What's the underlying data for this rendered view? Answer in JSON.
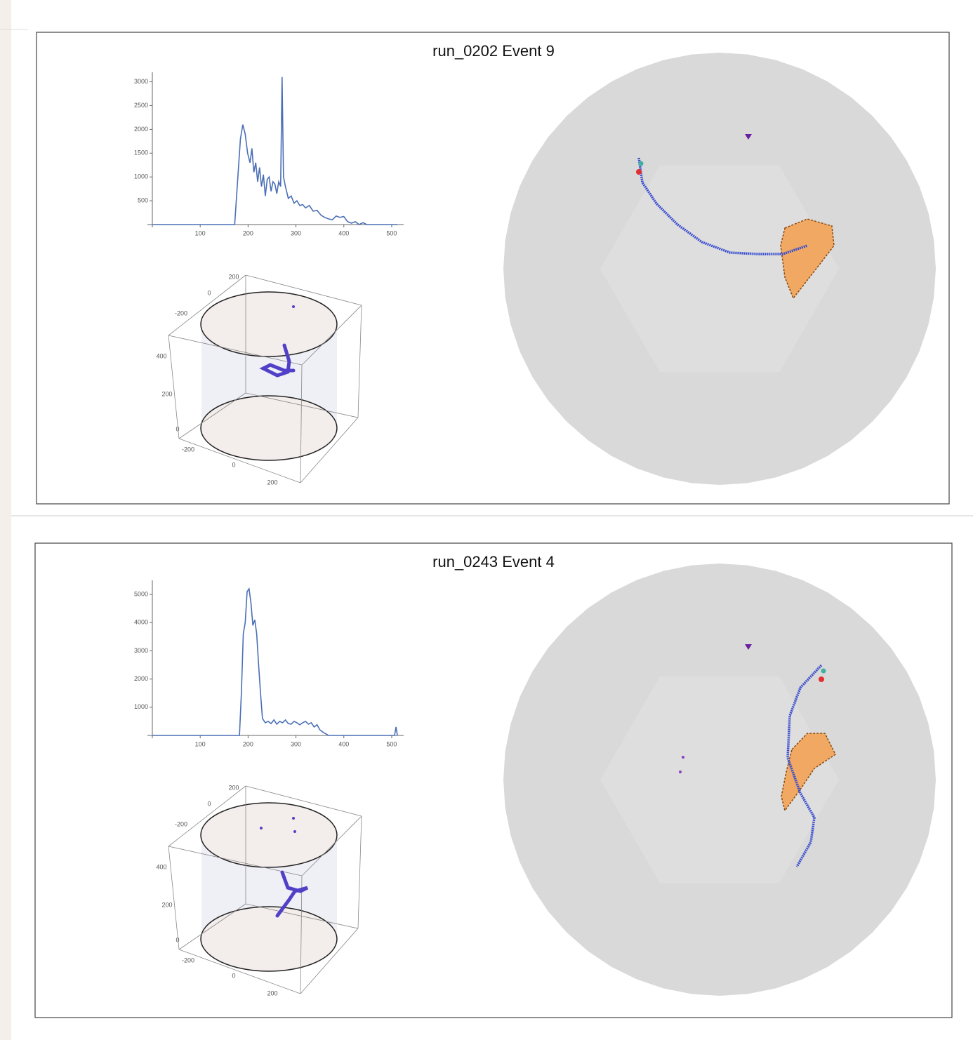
{
  "chart_data": [
    {
      "type": "line",
      "title": "run_0202 Event 9",
      "color": "#4a6fb5",
      "x": [
        1,
        50,
        100,
        150,
        172,
        178,
        184,
        189,
        194,
        199,
        204,
        208,
        212,
        216,
        220,
        224,
        228,
        232,
        236,
        240,
        244,
        248,
        252,
        256,
        260,
        264,
        268,
        271,
        274,
        278,
        284,
        290,
        296,
        302,
        308,
        314,
        320,
        328,
        336,
        344,
        352,
        360,
        368,
        376,
        384,
        392,
        400,
        408,
        416,
        424,
        432,
        440,
        448,
        480,
        512
      ],
      "values": [
        0,
        0,
        0,
        0,
        0,
        900,
        1800,
        2100,
        1900,
        1500,
        1300,
        1600,
        1100,
        1300,
        900,
        1200,
        800,
        1050,
        600,
        950,
        1000,
        700,
        900,
        850,
        650,
        900,
        800,
        3100,
        1000,
        800,
        550,
        600,
        450,
        500,
        400,
        420,
        350,
        400,
        280,
        300,
        200,
        150,
        120,
        100,
        180,
        150,
        170,
        60,
        30,
        60,
        0,
        40,
        0,
        0,
        0
      ],
      "xlim": [
        0,
        525
      ],
      "ylim": [
        0,
        3200
      ],
      "xticks": [
        100,
        200,
        300,
        400,
        500
      ],
      "yticks": [
        500,
        1000,
        1500,
        2000,
        2500,
        3000
      ],
      "box_ticks": [
        200,
        0,
        -200,
        400,
        200,
        0,
        -200,
        0,
        200
      ]
    },
    {
      "type": "line",
      "title": "run_0243 Event 4",
      "color": "#4a6fb5",
      "x": [
        1,
        50,
        100,
        150,
        182,
        186,
        190,
        194,
        198,
        202,
        206,
        210,
        214,
        218,
        222,
        226,
        230,
        236,
        242,
        248,
        254,
        260,
        266,
        272,
        278,
        284,
        290,
        296,
        302,
        308,
        314,
        320,
        326,
        332,
        338,
        344,
        350,
        356,
        362,
        368,
        400,
        450,
        500,
        506,
        509,
        512
      ],
      "values": [
        0,
        0,
        0,
        0,
        0,
        1500,
        3600,
        4000,
        5100,
        5200,
        4700,
        3900,
        4100,
        3600,
        2500,
        1500,
        600,
        450,
        500,
        420,
        550,
        400,
        500,
        450,
        550,
        420,
        400,
        500,
        450,
        380,
        450,
        500,
        400,
        450,
        300,
        380,
        200,
        120,
        60,
        0,
        0,
        0,
        0,
        0,
        300,
        0
      ],
      "xlim": [
        0,
        525
      ],
      "ylim": [
        0,
        5500
      ],
      "xticks": [
        100,
        200,
        300,
        400,
        500
      ],
      "yticks": [
        1000,
        2000,
        3000,
        4000,
        5000
      ],
      "box_ticks": [
        200,
        0,
        -200,
        400,
        200,
        0,
        -200,
        0,
        200
      ]
    }
  ]
}
